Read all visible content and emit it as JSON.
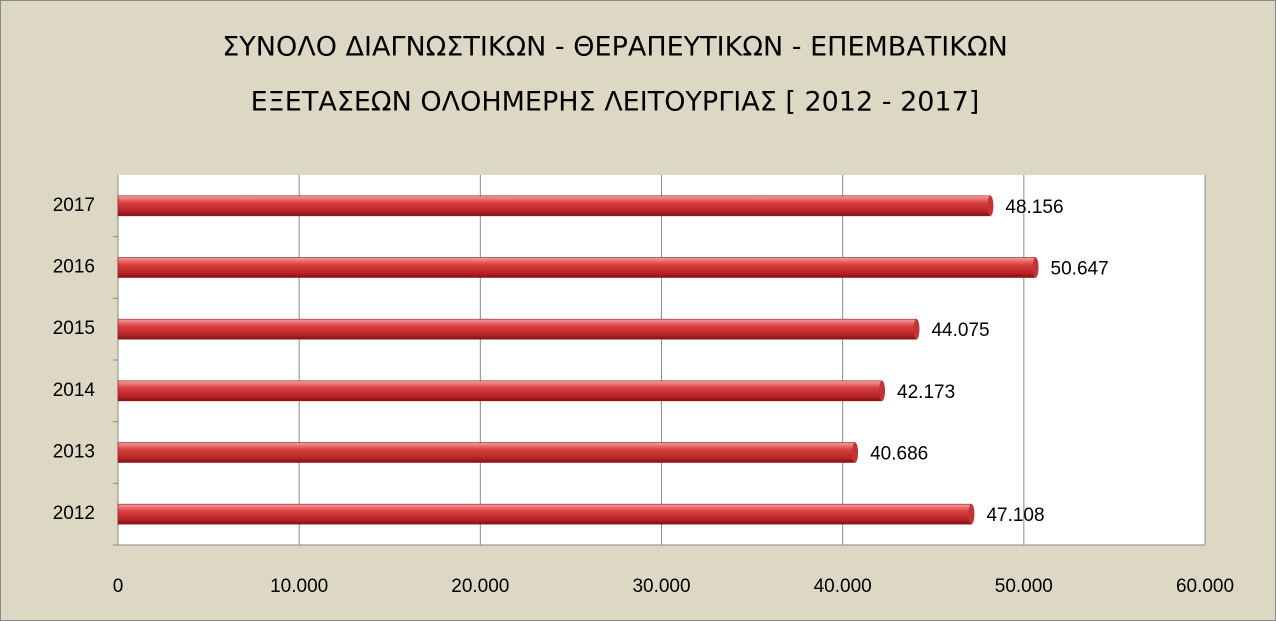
{
  "chart_data": {
    "type": "bar",
    "orientation": "horizontal",
    "title": [
      "ΣΥΝΟΛΟ ΔΙΑΓΝΩΣΤΙΚΩΝ - ΘΕΡΑΠΕΥΤΙΚΩΝ - ΕΠΕΜΒΑΤΙΚΩΝ",
      "ΕΞΕΤΑΣΕΩΝ ΟΛΟΗΜΕΡΗΣ ΛΕΙΤΟΥΡΓΙΑΣ [ 2012 - 2017]"
    ],
    "categories": [
      "2012",
      "2013",
      "2014",
      "2015",
      "2016",
      "2017"
    ],
    "values": [
      47108,
      40686,
      42173,
      44075,
      50647,
      48156
    ],
    "value_labels": [
      "47.108",
      "40.686",
      "42.173",
      "44.075",
      "50.647",
      "48.156"
    ],
    "color": "#c0393b",
    "xlim": [
      0,
      60000
    ],
    "xticks": [
      0,
      {
        "value": 10000,
        "label": "10.000"
      },
      {
        "value": 20000,
        "label": "20.000"
      },
      {
        "value": 30000,
        "label": "30.000"
      },
      {
        "value": 40000,
        "label": "40.000"
      },
      {
        "value": 50000,
        "label": "50.000"
      },
      {
        "value": 60000,
        "label": "60.000"
      }
    ],
    "grid": true
  }
}
